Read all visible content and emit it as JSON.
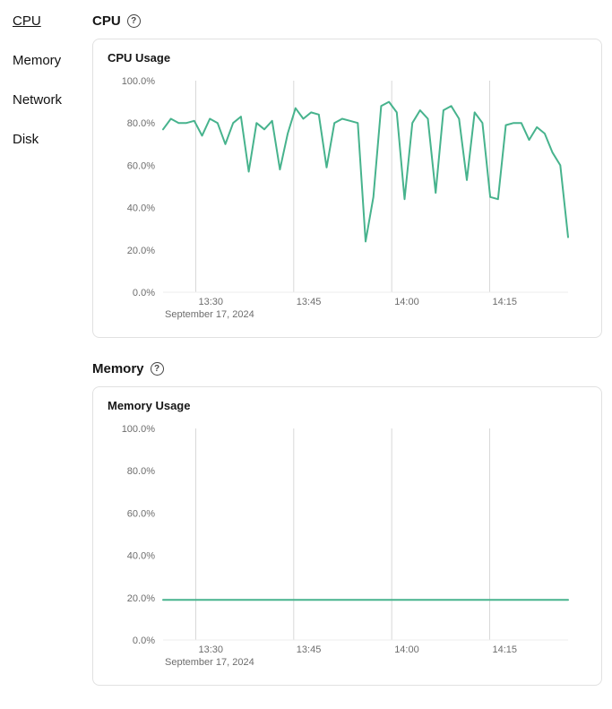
{
  "sidebar": {
    "items": [
      {
        "label": "CPU",
        "active": true
      },
      {
        "label": "Memory",
        "active": false
      },
      {
        "label": "Network",
        "active": false
      },
      {
        "label": "Disk",
        "active": false
      }
    ]
  },
  "icons": {
    "help": "?"
  },
  "sections": [
    {
      "title": "CPU",
      "card_title": "CPU Usage"
    },
    {
      "title": "Memory",
      "card_title": "Memory Usage"
    }
  ],
  "chart_data": [
    {
      "type": "line",
      "title": "CPU Usage",
      "xlabel": "",
      "ylabel": "",
      "legend": "off",
      "grid": "vertical-only",
      "color": "#47b38d",
      "ylim": [
        0,
        100
      ],
      "yticks": [
        0,
        20,
        40,
        60,
        80,
        100
      ],
      "ytick_labels": [
        "0.0%",
        "20.0%",
        "40.0%",
        "60.0%",
        "80.0%",
        "100.0%"
      ],
      "x_range": [
        0,
        62
      ],
      "x_unit": "minutes-after-13:25",
      "xticks": [
        {
          "label": "13:30",
          "x": 5
        },
        {
          "label": "13:45",
          "x": 20
        },
        {
          "label": "14:00",
          "x": 35
        },
        {
          "label": "14:15",
          "x": 50
        }
      ],
      "date_label": "September 17, 2024",
      "values": [
        77,
        82,
        80,
        80,
        81,
        74,
        82,
        80,
        70,
        80,
        83,
        57,
        80,
        77,
        81,
        58,
        75,
        87,
        82,
        85,
        84,
        59,
        80,
        82,
        81,
        80,
        24,
        45,
        88,
        90,
        85,
        44,
        80,
        86,
        82,
        47,
        86,
        88,
        82,
        53,
        85,
        80,
        45,
        44,
        79,
        80,
        80,
        72,
        78,
        75,
        66,
        60,
        26
      ]
    },
    {
      "type": "line",
      "title": "Memory Usage",
      "xlabel": "",
      "ylabel": "",
      "legend": "off",
      "grid": "vertical-only",
      "color": "#47b38d",
      "ylim": [
        0,
        100
      ],
      "yticks": [
        0,
        20,
        40,
        60,
        80,
        100
      ],
      "ytick_labels": [
        "0.0%",
        "20.0%",
        "40.0%",
        "60.0%",
        "80.0%",
        "100.0%"
      ],
      "x_range": [
        0,
        62
      ],
      "x_unit": "minutes-after-13:25",
      "xticks": [
        {
          "label": "13:30",
          "x": 5
        },
        {
          "label": "13:45",
          "x": 20
        },
        {
          "label": "14:00",
          "x": 35
        },
        {
          "label": "14:15",
          "x": 50
        }
      ],
      "date_label": "September 17, 2024",
      "values": [
        19,
        19
      ]
    }
  ]
}
